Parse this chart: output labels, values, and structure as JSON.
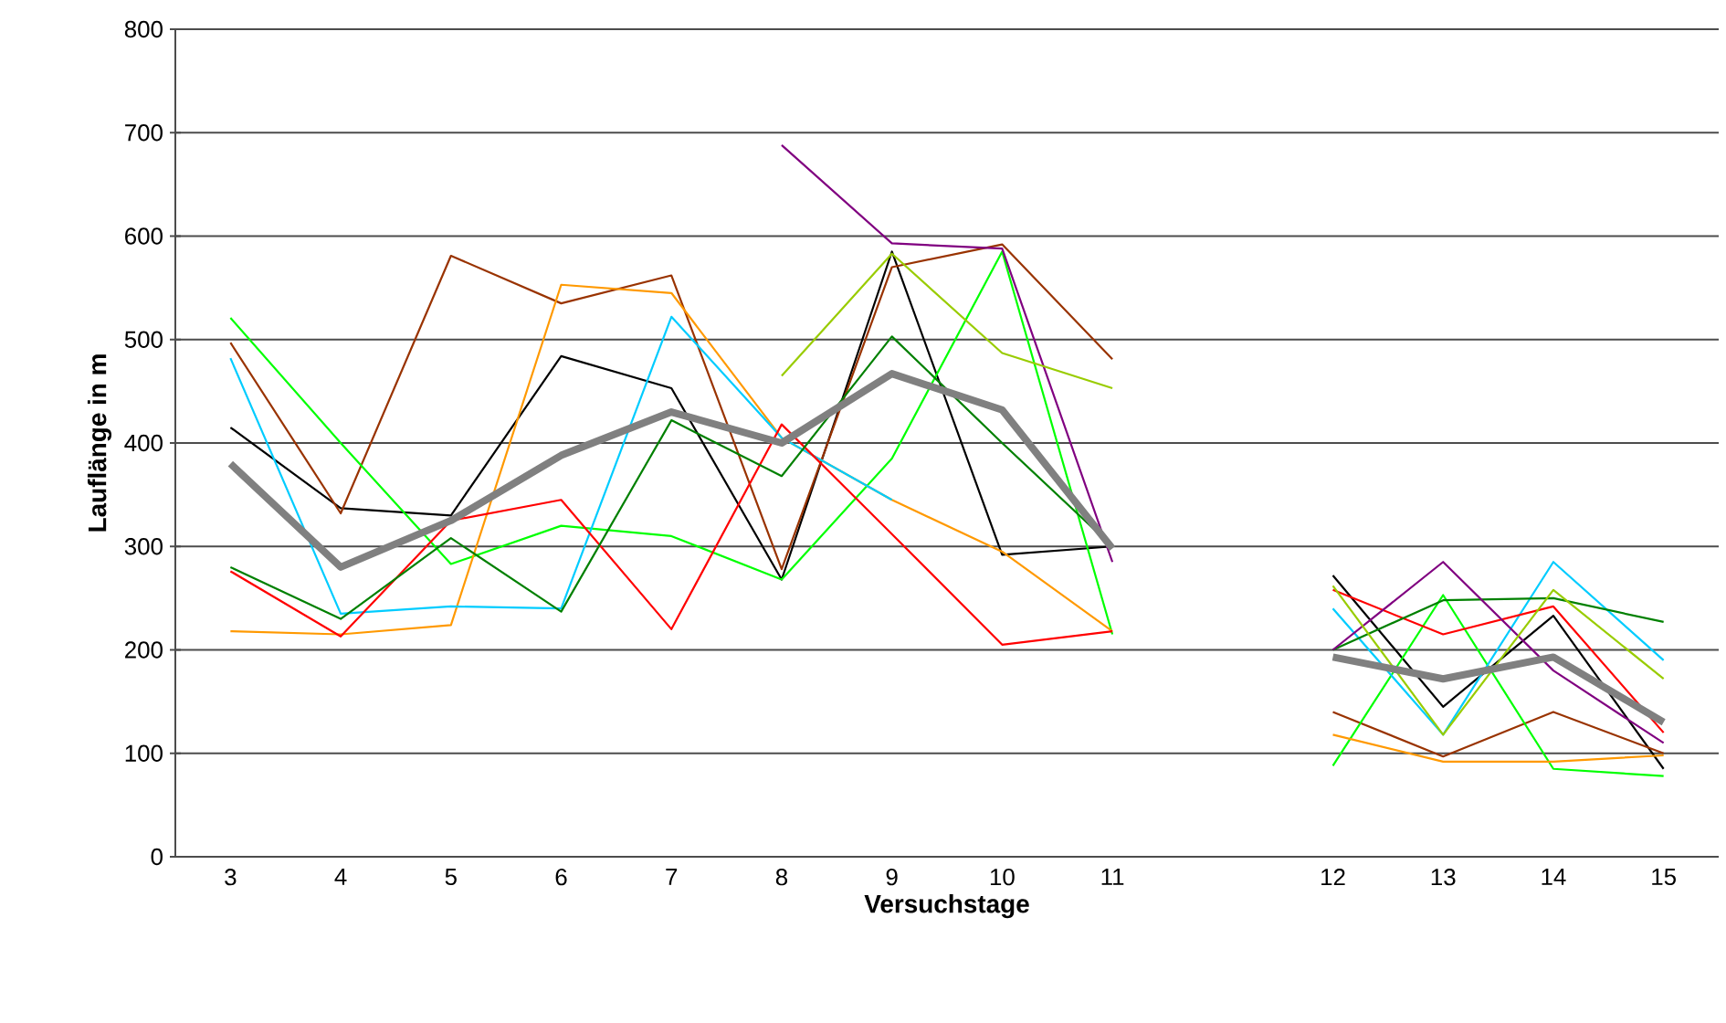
{
  "chart_data": {
    "type": "line",
    "xlabel": "Versuchstage",
    "ylabel": "Lauflänge in m",
    "categories": [
      "3",
      "4",
      "5",
      "6",
      "7",
      "8",
      "9",
      "10",
      "11",
      null,
      "12",
      "13",
      "14",
      "15"
    ],
    "ylim": [
      0,
      800
    ],
    "yticks": [
      0,
      100,
      200,
      300,
      400,
      500,
      600,
      700,
      800
    ],
    "grid": "y",
    "marker": "none",
    "series": [
      {
        "color": "#000000",
        "values": [
          415,
          337,
          330,
          484,
          453,
          268,
          585,
          292,
          300,
          null,
          272,
          145,
          233,
          85
        ]
      },
      {
        "color": "#993300",
        "values": [
          497,
          332,
          581,
          535,
          562,
          278,
          570,
          592,
          481,
          null,
          140,
          97,
          140,
          100
        ]
      },
      {
        "color": "#00ff00",
        "values": [
          521,
          400,
          283,
          320,
          310,
          268,
          385,
          585,
          215,
          null,
          88,
          253,
          85,
          78
        ]
      },
      {
        "color": "#ff9900",
        "values": [
          218,
          215,
          224,
          553,
          545,
          405,
          345,
          295,
          218,
          null,
          118,
          92,
          92,
          98
        ]
      },
      {
        "color": "#00ccff",
        "values": [
          482,
          235,
          242,
          240,
          522,
          405,
          345,
          null,
          null,
          null,
          240,
          118,
          285,
          190
        ]
      },
      {
        "color": "#ff0000",
        "values": [
          276,
          213,
          325,
          345,
          220,
          418,
          312,
          205,
          218,
          null,
          258,
          215,
          242,
          120
        ]
      },
      {
        "color": "#008000",
        "values": [
          280,
          230,
          308,
          237,
          422,
          368,
          503,
          400,
          300,
          null,
          200,
          248,
          250,
          227
        ]
      },
      {
        "color": "#800080",
        "values": [
          null,
          null,
          null,
          null,
          null,
          688,
          593,
          588,
          285,
          null,
          200,
          285,
          180,
          110
        ]
      },
      {
        "color": "#99cc00",
        "values": [
          null,
          null,
          null,
          null,
          null,
          465,
          583,
          487,
          453,
          null,
          262,
          118,
          258,
          172
        ]
      },
      {
        "color": "#808080",
        "values": [
          380,
          280,
          325,
          388,
          430,
          400,
          467,
          432,
          298,
          null,
          193,
          172,
          193,
          130
        ]
      }
    ]
  }
}
